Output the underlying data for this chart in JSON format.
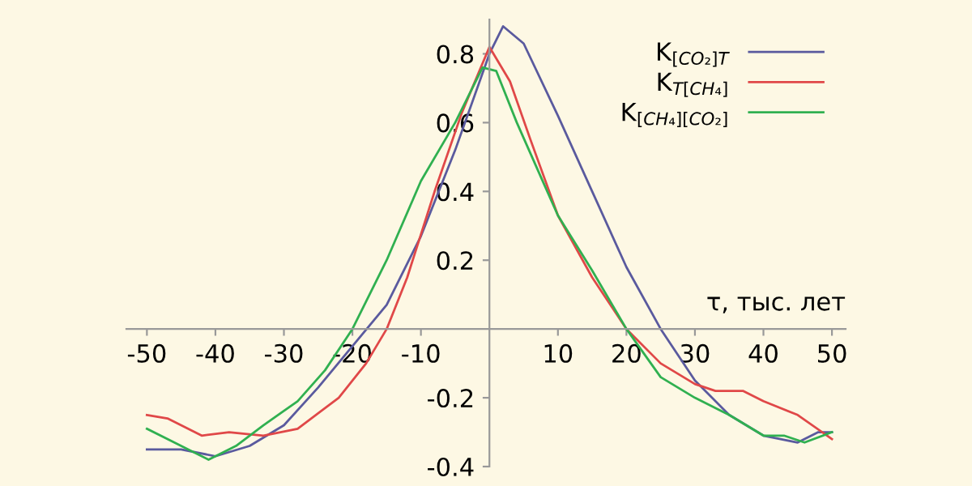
{
  "chart_data": {
    "type": "line",
    "xlabel": "τ, тыс. лет",
    "xlim": [
      -53,
      52
    ],
    "ylim": [
      -0.4,
      0.9
    ],
    "xticks": [
      -50,
      -40,
      -30,
      -20,
      -10,
      10,
      20,
      30,
      40,
      50
    ],
    "yticks": [
      -0.4,
      -0.2,
      0.2,
      0.4,
      0.6,
      0.8
    ],
    "grid": false,
    "legend": "top right",
    "series": [
      {
        "name": "K$_{[CO₂]T}$",
        "color": "#5a5a9e",
        "x": [
          -50,
          -45,
          -40,
          -35,
          -30,
          -25,
          -20,
          -15,
          -10,
          -5,
          0,
          2,
          5,
          10,
          15,
          20,
          25,
          30,
          35,
          40,
          45,
          48,
          50
        ],
        "values": [
          -0.35,
          -0.35,
          -0.37,
          -0.34,
          -0.28,
          -0.17,
          -0.05,
          0.07,
          0.27,
          0.52,
          0.8,
          0.88,
          0.83,
          0.62,
          0.4,
          0.18,
          0.0,
          -0.15,
          -0.25,
          -0.31,
          -0.33,
          -0.3,
          -0.3
        ]
      },
      {
        "name": "K$_{T[CH₄]}$",
        "color": "#e04848",
        "x": [
          -50,
          -47,
          -42,
          -38,
          -33,
          -28,
          -22,
          -18,
          -15,
          -12,
          -8,
          -4,
          0,
          3,
          6,
          10,
          15,
          20,
          25,
          30,
          33,
          37,
          40,
          45,
          50
        ],
        "values": [
          -0.25,
          -0.26,
          -0.31,
          -0.3,
          -0.31,
          -0.29,
          -0.2,
          -0.1,
          0.0,
          0.15,
          0.4,
          0.63,
          0.82,
          0.72,
          0.55,
          0.33,
          0.15,
          0.0,
          -0.1,
          -0.16,
          -0.18,
          -0.18,
          -0.21,
          -0.25,
          -0.32
        ]
      },
      {
        "name": "K$_{[CH₄][CO₂]}$",
        "color": "#30b050",
        "x": [
          -50,
          -46,
          -41,
          -37,
          -33,
          -28,
          -24,
          -20,
          -15,
          -10,
          -5,
          -1,
          1,
          4,
          8,
          10,
          15,
          20,
          25,
          30,
          35,
          40,
          43,
          46,
          50
        ],
        "values": [
          -0.29,
          -0.33,
          -0.38,
          -0.34,
          -0.28,
          -0.21,
          -0.12,
          0.0,
          0.2,
          0.43,
          0.6,
          0.76,
          0.75,
          0.6,
          0.42,
          0.33,
          0.17,
          0.0,
          -0.14,
          -0.2,
          -0.25,
          -0.31,
          -0.31,
          -0.33,
          -0.3
        ]
      }
    ]
  }
}
